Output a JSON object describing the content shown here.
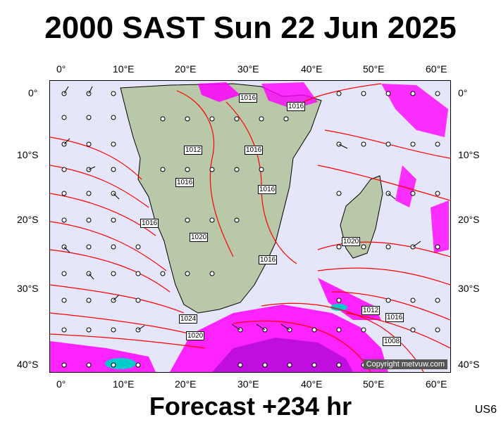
{
  "title": "2000 SAST Sun 22 Jun 2025",
  "forecast": "Forecast +234 hr",
  "code": "US6",
  "copyright": "Copyright metvuw.com",
  "lon_labels": [
    "0°",
    "10°E",
    "20°E",
    "30°E",
    "40°E",
    "50°E",
    "60°E"
  ],
  "lat_labels": [
    "0°",
    "10°S",
    "20°S",
    "30°S",
    "40°S"
  ],
  "isobar_labels": [
    "1016",
    "1016",
    "1012",
    "1016",
    "1016",
    "1016",
    "1016",
    "1020",
    "1016",
    "1020",
    "1024",
    "1020",
    "1012",
    "1016",
    "1008"
  ],
  "colors": {
    "ocean": "#e6e6fb",
    "land": "#b8c8a8",
    "isobar": "#ff0000",
    "rain_magenta": "#ff00ff",
    "rain_purple": "#9900cc"
  }
}
